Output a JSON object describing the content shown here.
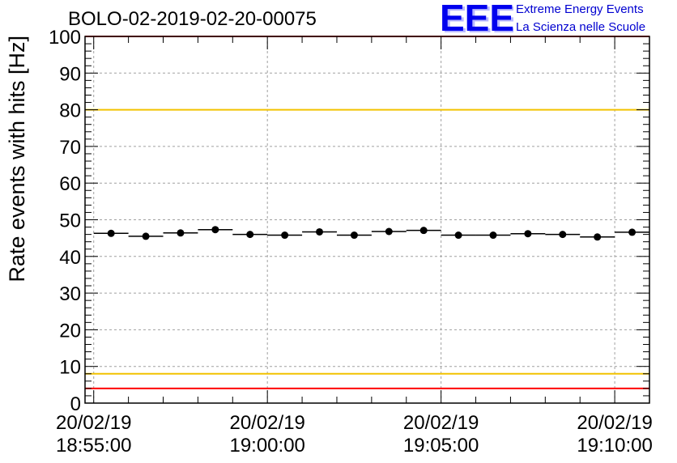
{
  "header": {
    "run_title": "BOLO-02-2019-02-20-00075",
    "logo_text": "EEE",
    "logo_line1": "Extreme Energy Events",
    "logo_line2": "La Scienza nelle Scuole"
  },
  "colors": {
    "limit_red": "#ff0000",
    "limit_yellow": "#f2c200",
    "logo_blue": "#0000ee",
    "grid": "#a0a0a0"
  },
  "chart_data": {
    "type": "scatter",
    "title": "BOLO-02-2019-02-20-00075",
    "ylabel": "Rate events with hits [Hz]",
    "xlabel": "",
    "ylim": [
      0,
      100
    ],
    "y_ticks": [
      0,
      10,
      20,
      30,
      40,
      50,
      60,
      70,
      80,
      90,
      100
    ],
    "x_range": [
      "18:54:45",
      "19:11:00"
    ],
    "x_ticks": [
      {
        "time": "18:55:00",
        "label_date": "20/02/19",
        "label_time": "18:55:00"
      },
      {
        "time": "19:00:00",
        "label_date": "20/02/19",
        "label_time": "19:00:00"
      },
      {
        "time": "19:05:00",
        "label_date": "20/02/19",
        "label_time": "19:05:00"
      },
      {
        "time": "19:10:00",
        "label_date": "20/02/19",
        "label_time": "19:10:00"
      }
    ],
    "grid": true,
    "bin_width_s": 60,
    "points": [
      {
        "time": "18:55:30",
        "rate": 46.3
      },
      {
        "time": "18:56:30",
        "rate": 45.5
      },
      {
        "time": "18:57:30",
        "rate": 46.4
      },
      {
        "time": "18:58:30",
        "rate": 47.3
      },
      {
        "time": "18:59:30",
        "rate": 46.0
      },
      {
        "time": "19:00:30",
        "rate": 45.8
      },
      {
        "time": "19:01:30",
        "rate": 46.7
      },
      {
        "time": "19:02:30",
        "rate": 45.8
      },
      {
        "time": "19:03:30",
        "rate": 46.8
      },
      {
        "time": "19:04:30",
        "rate": 47.1
      },
      {
        "time": "19:05:30",
        "rate": 45.8
      },
      {
        "time": "19:06:30",
        "rate": 45.8
      },
      {
        "time": "19:07:30",
        "rate": 46.2
      },
      {
        "time": "19:08:30",
        "rate": 46.0
      },
      {
        "time": "19:09:30",
        "rate": 45.3
      },
      {
        "time": "19:10:30",
        "rate": 46.6
      }
    ],
    "reference_lines": [
      {
        "y": 100,
        "color": "red"
      },
      {
        "y": 80,
        "color": "yellow"
      },
      {
        "y": 8,
        "color": "yellow"
      },
      {
        "y": 4,
        "color": "red"
      }
    ]
  }
}
